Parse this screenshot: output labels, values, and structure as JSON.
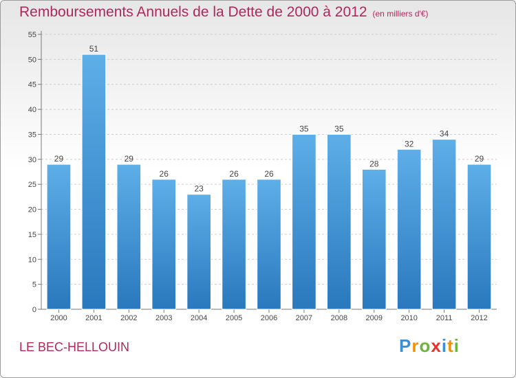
{
  "header": {
    "title": "Remboursements Annuels de la Dette de 2000 à 2012",
    "subtitle": "(en milliers d'€)"
  },
  "footer": {
    "commune": "LE BEC-HELLOUIN",
    "logo": "Proxiti"
  },
  "colors": {
    "title": "#b0275a",
    "bar_top": "#5eaee8",
    "bar_bottom": "#2a78bd",
    "grid": "#cccccc"
  },
  "chart_data": {
    "type": "bar",
    "title": "Remboursements Annuels de la Dette de 2000 à 2012",
    "categories": [
      "2000",
      "2001",
      "2002",
      "2003",
      "2004",
      "2005",
      "2006",
      "2007",
      "2008",
      "2009",
      "2010",
      "2011",
      "2012"
    ],
    "values": [
      29,
      51,
      29,
      26,
      23,
      26,
      26,
      35,
      35,
      28,
      32,
      34,
      29
    ],
    "ylim": [
      0,
      55
    ],
    "yticks": [
      0,
      5,
      10,
      15,
      20,
      25,
      30,
      35,
      40,
      45,
      50,
      55
    ],
    "grid": true,
    "legend": false
  }
}
